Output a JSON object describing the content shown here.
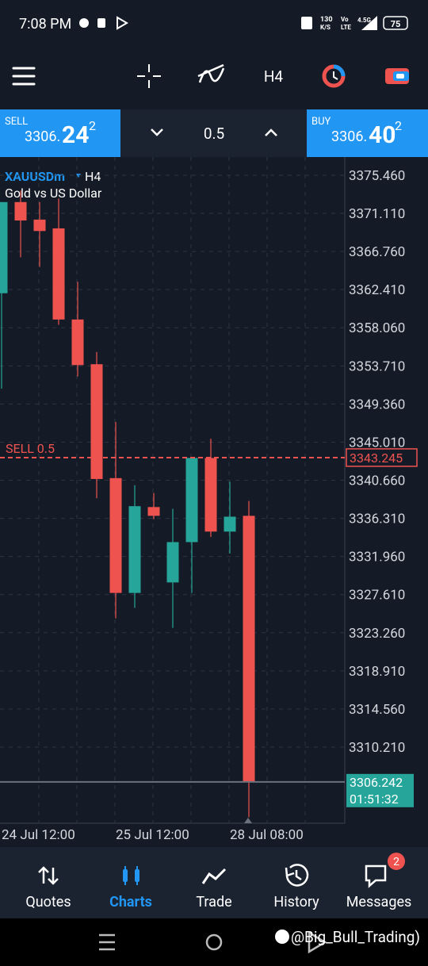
{
  "status_bar": {
    "time": "7:08 PM",
    "speed": "130",
    "speed_unit": "K/S",
    "volte": "Vo",
    "lte": "LTE",
    "network": "4.5G",
    "battery": "75"
  },
  "toolbar": {
    "timeframe": "H4"
  },
  "trade_panel": {
    "sell_label": "SELL",
    "sell_price": "3306.",
    "sell_price_big": "24",
    "sell_price_sup": "2",
    "volume": "0.5",
    "buy_label": "BUY",
    "buy_price": "3306.",
    "buy_price_big": "40",
    "buy_price_sup": "2"
  },
  "chart_data": {
    "type": "candlestick",
    "symbol": "XAUUSDm",
    "timeframe": "H4",
    "title": "Gold vs US Dollar",
    "categories": [
      "24 Jul 12:00",
      null,
      null,
      null,
      null,
      null,
      "25 Jul 12:00",
      null,
      null,
      null,
      null,
      null,
      "28 Jul 08:00",
      null
    ],
    "open": [
      3362.0,
      3372.4,
      3370.4,
      3369.4,
      3359.0,
      3353.9,
      3340.9,
      3327.8,
      3337.6,
      3329.0,
      3333.6,
      3343.2,
      3334.8,
      3336.6
    ],
    "high": [
      3372.4,
      3373.7,
      3372.4,
      3372.8,
      3363.3,
      3355.3,
      3347.3,
      3340.1,
      3339.2,
      3337.4,
      3343.2,
      3345.4,
      3340.5,
      3338.3
    ],
    "low": [
      3351.1,
      3366.1,
      3365.0,
      3358.4,
      3352.5,
      3338.6,
      3324.9,
      3326.1,
      3336.2,
      3323.8,
      3327.8,
      3334.2,
      3332.3,
      3302.2
    ],
    "close": [
      3372.4,
      3370.3,
      3369.1,
      3359.0,
      3353.8,
      3340.8,
      3327.8,
      3337.7,
      3336.6,
      3333.6,
      3343.2,
      3334.8,
      3336.5,
      3306.242
    ],
    "up_color": "#26a69a",
    "down_color": "#ef5350",
    "ylim": [
      3301.52,
      3377.54
    ],
    "yticks": [
      {
        "value": 3375.46,
        "label": "3375.460"
      },
      {
        "value": 3371.11,
        "label": "3371.110"
      },
      {
        "value": 3366.76,
        "label": "3366.760"
      },
      {
        "value": 3362.41,
        "label": "3362.410"
      },
      {
        "value": 3358.06,
        "label": "3358.060"
      },
      {
        "value": 3353.71,
        "label": "3353.710"
      },
      {
        "value": 3349.36,
        "label": "3349.360"
      },
      {
        "value": 3345.01,
        "label": "3345.010"
      },
      {
        "value": 3340.66,
        "label": "3340.660"
      },
      {
        "value": 3336.31,
        "label": "3336.310"
      },
      {
        "value": 3331.96,
        "label": "3331.960"
      },
      {
        "value": 3327.61,
        "label": "3327.610"
      },
      {
        "value": 3323.26,
        "label": "3323.260"
      },
      {
        "value": 3318.91,
        "label": "3318.910"
      },
      {
        "value": 3314.56,
        "label": "3314.560"
      },
      {
        "value": 3310.21,
        "label": "3310.210"
      }
    ],
    "grid": true,
    "order_line": {
      "label": "SELL 0.5",
      "value": 3343.245
    },
    "current_price": {
      "value": 3306.242,
      "countdown": "01:51:32"
    }
  },
  "nav": {
    "items": [
      "Quotes",
      "Charts",
      "Trade",
      "History",
      "Messages"
    ],
    "active": "Charts",
    "badge": "2"
  },
  "watermark": "@Big_Bull_Trading)"
}
